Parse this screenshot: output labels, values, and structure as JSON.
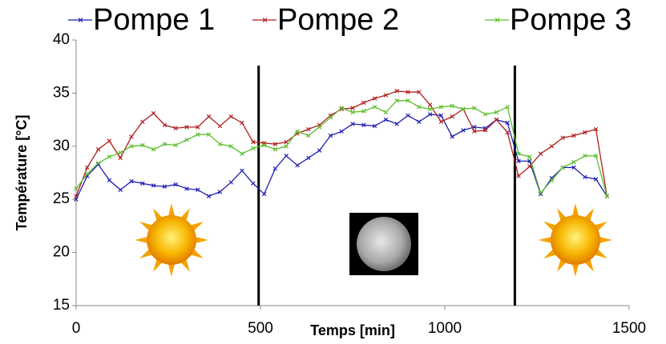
{
  "chart_data": {
    "type": "line",
    "x_label": "Temps [min]",
    "y_label": "Température [°C]",
    "x": [
      0,
      30,
      60,
      90,
      120,
      150,
      180,
      210,
      240,
      270,
      300,
      330,
      360,
      390,
      420,
      450,
      480,
      510,
      540,
      570,
      600,
      630,
      660,
      690,
      720,
      750,
      780,
      810,
      840,
      870,
      900,
      930,
      960,
      990,
      1020,
      1050,
      1080,
      1110,
      1140,
      1170,
      1200,
      1230,
      1260,
      1290,
      1320,
      1350,
      1380,
      1410,
      1440
    ],
    "series": [
      {
        "name": "Pompe 1",
        "color": "#1f1fb4",
        "values": [
          25.0,
          27.2,
          28.3,
          26.8,
          25.9,
          26.7,
          26.5,
          26.3,
          26.2,
          26.4,
          26.0,
          25.9,
          25.3,
          25.7,
          26.6,
          27.7,
          26.5,
          25.5,
          27.9,
          29.1,
          28.2,
          28.9,
          29.6,
          31.0,
          31.4,
          32.1,
          32.0,
          31.9,
          32.5,
          32.1,
          32.9,
          32.3,
          33.0,
          32.9,
          30.9,
          31.5,
          31.8,
          31.7,
          32.5,
          32.2,
          28.6,
          28.6,
          25.5,
          27.0,
          28.0,
          28.0,
          27.1,
          26.9,
          25.3
        ]
      },
      {
        "name": "Pompe 2",
        "color": "#b01e1e",
        "values": [
          25.3,
          28.0,
          29.7,
          30.5,
          28.9,
          30.9,
          32.3,
          33.1,
          32.0,
          31.7,
          31.8,
          31.8,
          32.8,
          31.9,
          32.8,
          32.2,
          30.4,
          30.3,
          30.2,
          30.4,
          31.2,
          31.6,
          32.0,
          32.9,
          33.5,
          33.6,
          34.1,
          34.5,
          34.8,
          35.2,
          35.1,
          35.1,
          33.9,
          32.3,
          32.8,
          33.5,
          31.4,
          31.5,
          32.5,
          31.3,
          27.2,
          28.1,
          29.3,
          30.0,
          30.8,
          31.0,
          31.3,
          31.6,
          25.3
        ]
      },
      {
        "name": "Pompe 3",
        "color": "#5cbf2f",
        "values": [
          26.0,
          27.4,
          28.4,
          29.0,
          29.4,
          30.0,
          30.1,
          29.7,
          30.2,
          30.1,
          30.6,
          31.1,
          31.1,
          30.2,
          30.0,
          29.3,
          29.8,
          30.1,
          29.7,
          30.0,
          31.4,
          31.0,
          31.8,
          32.7,
          33.6,
          33.2,
          33.3,
          33.7,
          33.2,
          34.3,
          34.3,
          33.7,
          33.5,
          33.7,
          33.8,
          33.5,
          33.6,
          33.0,
          33.2,
          33.7,
          29.3,
          29.0,
          25.6,
          26.8,
          28.0,
          28.5,
          29.1,
          29.1,
          25.3
        ]
      }
    ],
    "vlines": [
      495,
      1190
    ],
    "xlim": [
      0,
      1500
    ],
    "xticks": [
      0,
      500,
      1000,
      1500
    ],
    "ylim": [
      15,
      40
    ],
    "yticks": [
      15,
      20,
      25,
      30,
      35,
      40
    ],
    "grid": false,
    "legend": "top"
  }
}
